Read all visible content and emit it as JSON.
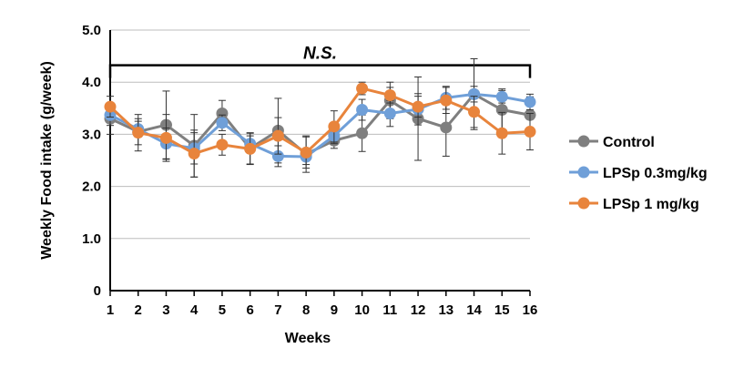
{
  "chart_data": {
    "type": "line",
    "title": "",
    "xlabel": "Weeks",
    "ylabel": "Weekly Food intake (g/week)",
    "ylim": [
      0,
      5
    ],
    "y_ticks": [
      "0",
      "1.0",
      "2.0",
      "3.0",
      "4.0",
      "5.0"
    ],
    "y_tick_values": [
      0,
      1,
      2,
      3,
      4,
      5
    ],
    "x": [
      1,
      2,
      3,
      4,
      5,
      6,
      7,
      8,
      9,
      10,
      11,
      12,
      13,
      14,
      15,
      16
    ],
    "x_tick_labels": [
      "1",
      "2",
      "3",
      "4",
      "5",
      "6",
      "7",
      "8",
      "9",
      "10",
      "11",
      "12",
      "13",
      "14",
      "15",
      "16"
    ],
    "grid": "horizontal",
    "legend_position": "right",
    "annotation": {
      "text": "N.S.",
      "bracket_from_week": 1,
      "bracket_to_week": 16,
      "bracket_level": 4.5
    },
    "series": [
      {
        "name": "Control",
        "color": "#7f7f7f",
        "values": [
          3.3,
          3.05,
          3.18,
          2.78,
          3.4,
          2.73,
          3.07,
          2.62,
          2.88,
          3.02,
          3.65,
          3.3,
          3.13,
          3.77,
          3.47,
          3.37
        ],
        "errors": [
          0.3,
          0.25,
          0.65,
          0.6,
          0.25,
          0.3,
          0.62,
          0.35,
          0.15,
          0.35,
          0.35,
          0.8,
          0.55,
          0.68,
          0.4,
          0.35
        ]
      },
      {
        "name": "LPSp 0.3mg/kg",
        "color": "#6f9fd8",
        "values": [
          3.37,
          3.1,
          2.82,
          2.73,
          3.22,
          2.82,
          2.58,
          2.57,
          2.97,
          3.47,
          3.4,
          3.48,
          3.7,
          3.77,
          3.72,
          3.62
        ],
        "errors": [
          0.2,
          0.15,
          0.3,
          0.3,
          0.15,
          0.15,
          0.2,
          0.15,
          0.15,
          0.2,
          0.25,
          0.3,
          0.22,
          0.15,
          0.12,
          0.15
        ]
      },
      {
        "name": "LPSp 1 mg/kg",
        "color": "#e8843c",
        "values": [
          3.53,
          3.03,
          2.93,
          2.63,
          2.8,
          2.72,
          2.97,
          2.65,
          3.15,
          3.88,
          3.75,
          3.53,
          3.65,
          3.43,
          3.02,
          3.05
        ],
        "errors": [
          0.2,
          0.35,
          0.45,
          0.45,
          0.2,
          0.3,
          0.35,
          0.3,
          0.3,
          0.12,
          0.15,
          0.2,
          0.25,
          0.3,
          0.4,
          0.35
        ]
      }
    ]
  }
}
